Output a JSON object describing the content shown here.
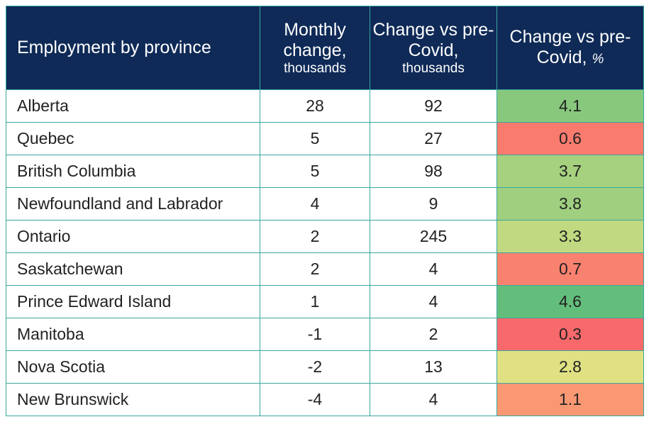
{
  "headers": {
    "province": "Employment by province",
    "monthly_main": "Monthly change,",
    "monthly_sub": "thousands",
    "change_k_main": "Change vs pre-Covid,",
    "change_k_sub": "thousands",
    "change_pct_main": "Change vs pre-Covid,",
    "change_pct_unit": "%"
  },
  "colors": {
    "header_bg": "#0f2a57",
    "border": "#3aa7a0",
    "heat_scale": [
      "#f8696b",
      "#fa9c74",
      "#fed97f",
      "#dde283",
      "#a3d07f",
      "#63be7b"
    ]
  },
  "chart_data": {
    "type": "table",
    "title": "Employment by province",
    "columns": [
      "Employment by province",
      "Monthly change, thousands",
      "Change vs pre-Covid, thousands",
      "Change vs pre-Covid, %"
    ],
    "rows": [
      {
        "province": "Alberta",
        "monthly": "28",
        "change_k": "92",
        "change_pct": "4.1",
        "pct_value": 4.1
      },
      {
        "province": "Quebec",
        "monthly": "5",
        "change_k": "27",
        "change_pct": "0.6",
        "pct_value": 0.6
      },
      {
        "province": "British Columbia",
        "monthly": "5",
        "change_k": "98",
        "change_pct": "3.7",
        "pct_value": 3.7
      },
      {
        "province": "Newfoundland and Labrador",
        "monthly": "4",
        "change_k": "9",
        "change_pct": "3.8",
        "pct_value": 3.8
      },
      {
        "province": "Ontario",
        "monthly": "2",
        "change_k": "245",
        "change_pct": "3.3",
        "pct_value": 3.3
      },
      {
        "province": "Saskatchewan",
        "monthly": "2",
        "change_k": "4",
        "change_pct": "0.7",
        "pct_value": 0.7
      },
      {
        "province": "Prince Edward Island",
        "monthly": "1",
        "change_k": "4",
        "change_pct": "4.6",
        "pct_value": 4.6
      },
      {
        "province": "Manitoba",
        "monthly": "-1",
        "change_k": "2",
        "change_pct": "0.3",
        "pct_value": 0.3
      },
      {
        "province": "Nova Scotia",
        "monthly": "-2",
        "change_k": "13",
        "change_pct": "2.8",
        "pct_value": 2.8
      },
      {
        "province": "New Brunswick",
        "monthly": "-4",
        "change_k": "4",
        "change_pct": "1.1",
        "pct_value": 1.1
      }
    ]
  }
}
